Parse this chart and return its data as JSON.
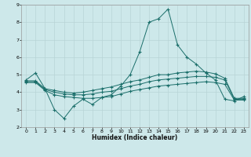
{
  "xlabel": "Humidex (Indice chaleur)",
  "bg_color": "#cde8ea",
  "grid_color": "#b8d4d6",
  "line_color": "#1a6e6a",
  "xlim": [
    -0.5,
    23.5
  ],
  "ylim": [
    2,
    9
  ],
  "yticks": [
    2,
    3,
    4,
    5,
    6,
    7,
    8,
    9
  ],
  "xticks": [
    0,
    1,
    2,
    3,
    4,
    5,
    6,
    7,
    8,
    9,
    10,
    11,
    12,
    13,
    14,
    15,
    16,
    17,
    18,
    19,
    20,
    21,
    22,
    23
  ],
  "line1_x": [
    0,
    1,
    2,
    3,
    4,
    5,
    6,
    7,
    8,
    9,
    10,
    11,
    12,
    13,
    14,
    15,
    16,
    17,
    18,
    19,
    20,
    21,
    22,
    23
  ],
  "line1_y": [
    4.7,
    5.1,
    4.2,
    3.0,
    2.5,
    3.2,
    3.6,
    3.3,
    3.7,
    3.85,
    4.35,
    5.0,
    6.3,
    8.0,
    8.2,
    8.75,
    6.7,
    6.0,
    5.6,
    5.1,
    4.7,
    3.6,
    3.5,
    3.75
  ],
  "line2_x": [
    0,
    1,
    2,
    3,
    4,
    5,
    6,
    7,
    8,
    9,
    10,
    11,
    12,
    13,
    14,
    15,
    16,
    17,
    18,
    19,
    20,
    21,
    22,
    23
  ],
  "line2_y": [
    4.65,
    4.65,
    4.2,
    4.1,
    4.0,
    3.95,
    4.0,
    4.1,
    4.2,
    4.3,
    4.45,
    4.6,
    4.7,
    4.85,
    5.0,
    5.0,
    5.1,
    5.15,
    5.2,
    5.15,
    5.05,
    4.8,
    3.65,
    3.65
  ],
  "line3_x": [
    0,
    1,
    2,
    3,
    4,
    5,
    6,
    7,
    8,
    9,
    10,
    11,
    12,
    13,
    14,
    15,
    16,
    17,
    18,
    19,
    20,
    21,
    22,
    23
  ],
  "line3_y": [
    4.6,
    4.6,
    4.15,
    4.0,
    3.9,
    3.85,
    3.85,
    3.9,
    4.0,
    4.05,
    4.2,
    4.35,
    4.45,
    4.6,
    4.7,
    4.75,
    4.8,
    4.85,
    4.9,
    4.9,
    4.85,
    4.7,
    3.6,
    3.6
  ],
  "line4_x": [
    0,
    1,
    2,
    3,
    4,
    5,
    6,
    7,
    8,
    9,
    10,
    11,
    12,
    13,
    14,
    15,
    16,
    17,
    18,
    19,
    20,
    21,
    22,
    23
  ],
  "line4_y": [
    4.55,
    4.55,
    4.1,
    3.85,
    3.75,
    3.7,
    3.65,
    3.65,
    3.7,
    3.75,
    3.9,
    4.05,
    4.15,
    4.25,
    4.35,
    4.4,
    4.45,
    4.5,
    4.55,
    4.6,
    4.55,
    4.45,
    3.55,
    3.55
  ]
}
